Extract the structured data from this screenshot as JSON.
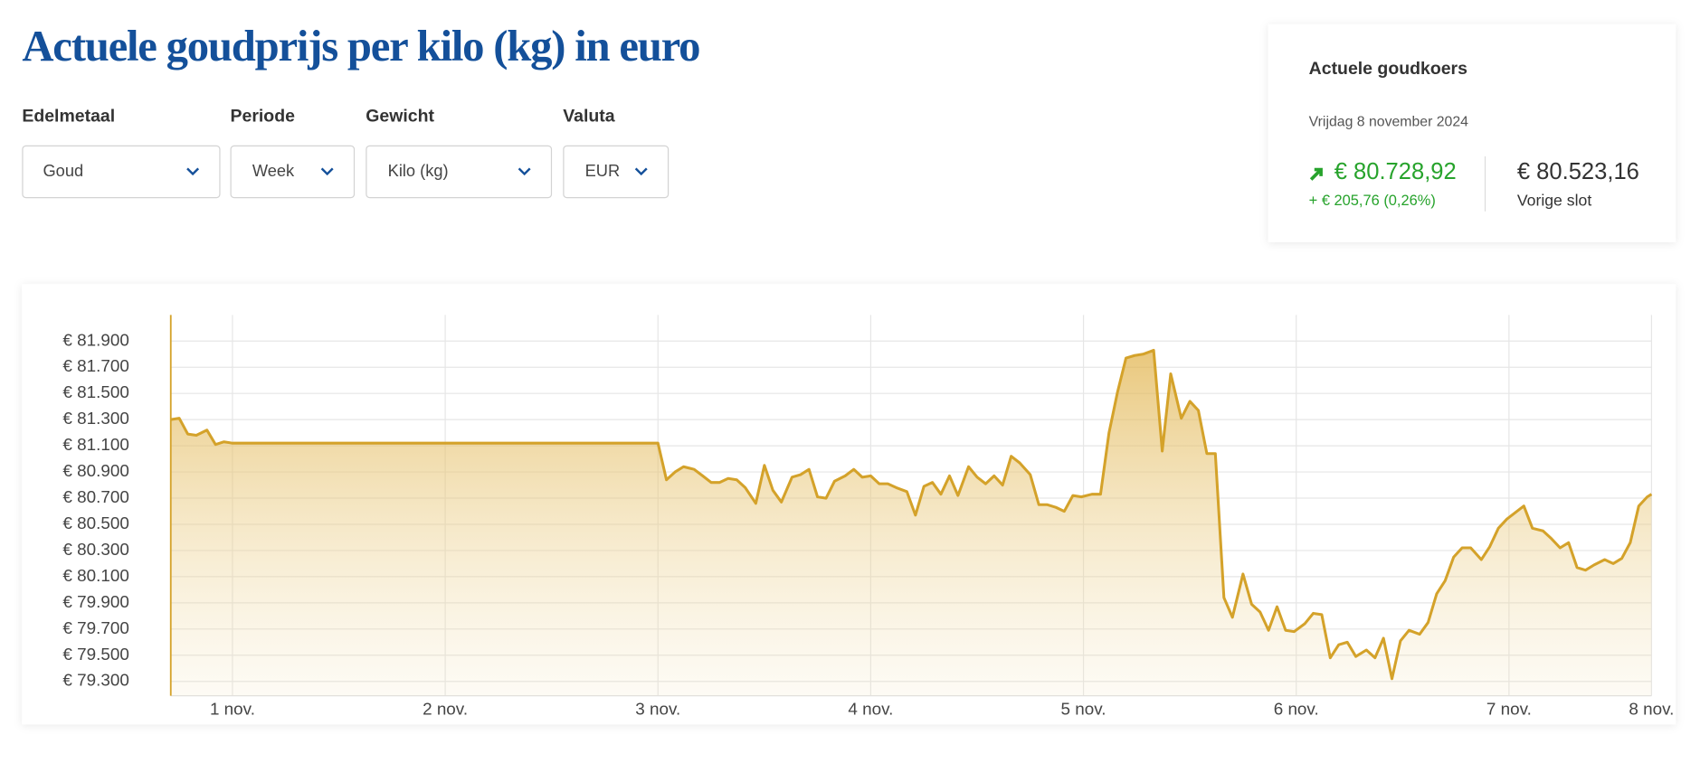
{
  "header": {
    "title": "Actuele goudprijs per kilo (kg) in euro"
  },
  "filters": [
    {
      "label": "Edelmetaal",
      "value": "Goud"
    },
    {
      "label": "Periode",
      "value": "Week"
    },
    {
      "label": "Gewicht",
      "value": "Kilo (kg)"
    },
    {
      "label": "Valuta",
      "value": "EUR"
    }
  ],
  "card": {
    "title": "Actuele goudkoers",
    "date": "Vrijdag 8 november 2024",
    "price": "€ 80.728,92",
    "change": "+ € 205,76 (0,26%)",
    "previous": "€ 80.523,16",
    "previous_label": "Vorige slot"
  },
  "chart_data": {
    "type": "area",
    "color": "#d4a22a",
    "grid": true,
    "xlim": [
      0.71,
      7.67
    ],
    "xticks": [
      {
        "value": 1,
        "label": "1 nov."
      },
      {
        "value": 2,
        "label": "2 nov."
      },
      {
        "value": 3,
        "label": "3 nov."
      },
      {
        "value": 4,
        "label": "4 nov."
      },
      {
        "value": 5,
        "label": "5 nov."
      },
      {
        "value": 6,
        "label": "6 nov."
      },
      {
        "value": 7,
        "label": "7 nov."
      },
      {
        "value": 7.67,
        "label": "8 nov."
      }
    ],
    "ylim": [
      79190,
      82100
    ],
    "yticks": [
      {
        "value": 79300,
        "label": "€ 79.300"
      },
      {
        "value": 79500,
        "label": "€ 79.500"
      },
      {
        "value": 79700,
        "label": "€ 79.700"
      },
      {
        "value": 79900,
        "label": "€ 79.900"
      },
      {
        "value": 80100,
        "label": "€ 80.100"
      },
      {
        "value": 80300,
        "label": "€ 80.300"
      },
      {
        "value": 80500,
        "label": "€ 80.500"
      },
      {
        "value": 80700,
        "label": "€ 80.700"
      },
      {
        "value": 80900,
        "label": "€ 80.900"
      },
      {
        "value": 81100,
        "label": "€ 81.100"
      },
      {
        "value": 81300,
        "label": "€ 81.300"
      },
      {
        "value": 81500,
        "label": "€ 81.500"
      },
      {
        "value": 81700,
        "label": "€ 81.700"
      },
      {
        "value": 81900,
        "label": "€ 81.900"
      }
    ],
    "x": [
      0.71,
      0.75,
      0.79,
      0.83,
      0.88,
      0.92,
      0.96,
      1.0,
      3.0,
      3.04,
      3.08,
      3.12,
      3.17,
      3.21,
      3.25,
      3.29,
      3.33,
      3.37,
      3.41,
      3.46,
      3.5,
      3.54,
      3.58,
      3.63,
      3.67,
      3.71,
      3.75,
      3.79,
      3.83,
      3.88,
      3.92,
      3.96,
      4.0,
      4.04,
      4.08,
      4.12,
      4.17,
      4.21,
      4.25,
      4.29,
      4.33,
      4.37,
      4.41,
      4.46,
      4.5,
      4.54,
      4.58,
      4.62,
      4.66,
      4.7,
      4.75,
      4.79,
      4.83,
      4.87,
      4.91,
      4.95,
      4.99,
      5.04,
      5.08,
      5.12,
      5.16,
      5.2,
      5.24,
      5.28,
      5.33,
      5.37,
      5.41,
      5.46,
      5.5,
      5.54,
      5.58,
      5.62,
      5.66,
      5.7,
      5.75,
      5.79,
      5.83,
      5.87,
      5.91,
      5.95,
      5.99,
      6.04,
      6.08,
      6.12,
      6.16,
      6.2,
      6.24,
      6.28,
      6.33,
      6.37,
      6.41,
      6.45,
      6.49,
      6.53,
      6.58,
      6.62,
      6.66,
      6.7,
      6.74,
      6.78,
      6.82,
      6.87,
      6.91,
      6.95,
      6.99,
      7.03,
      7.07,
      7.11,
      7.16,
      7.2,
      7.24,
      7.28,
      7.32,
      7.36,
      7.4,
      7.45,
      7.49,
      7.53,
      7.57,
      7.61,
      7.65,
      7.67
    ],
    "values": [
      81300,
      81310,
      81190,
      81180,
      81220,
      81110,
      81130,
      81120,
      81120,
      80840,
      80900,
      80940,
      80920,
      80870,
      80820,
      80820,
      80850,
      80840,
      80780,
      80660,
      80950,
      80760,
      80670,
      80860,
      80880,
      80920,
      80710,
      80700,
      80830,
      80870,
      80920,
      80860,
      80870,
      80810,
      80810,
      80780,
      80750,
      80570,
      80790,
      80820,
      80730,
      80870,
      80720,
      80940,
      80860,
      80810,
      80870,
      80800,
      81020,
      80970,
      80880,
      80650,
      80650,
      80630,
      80600,
      80720,
      80710,
      80730,
      80730,
      81200,
      81510,
      81770,
      81790,
      81800,
      81830,
      81060,
      81650,
      81310,
      81440,
      81370,
      81040,
      81040,
      79940,
      79790,
      80120,
      79890,
      79830,
      79690,
      79870,
      79690,
      79680,
      79740,
      79820,
      79810,
      79480,
      79580,
      79600,
      79490,
      79540,
      79480,
      79630,
      79320,
      79610,
      79690,
      79660,
      79750,
      79970,
      80070,
      80250,
      80320,
      80320,
      80230,
      80330,
      80470,
      80540,
      80590,
      80640,
      80470,
      80450,
      80390,
      80320,
      80360,
      80170,
      80150,
      80190,
      80230,
      80200,
      80240,
      80360,
      80640,
      80710,
      80730
    ]
  }
}
